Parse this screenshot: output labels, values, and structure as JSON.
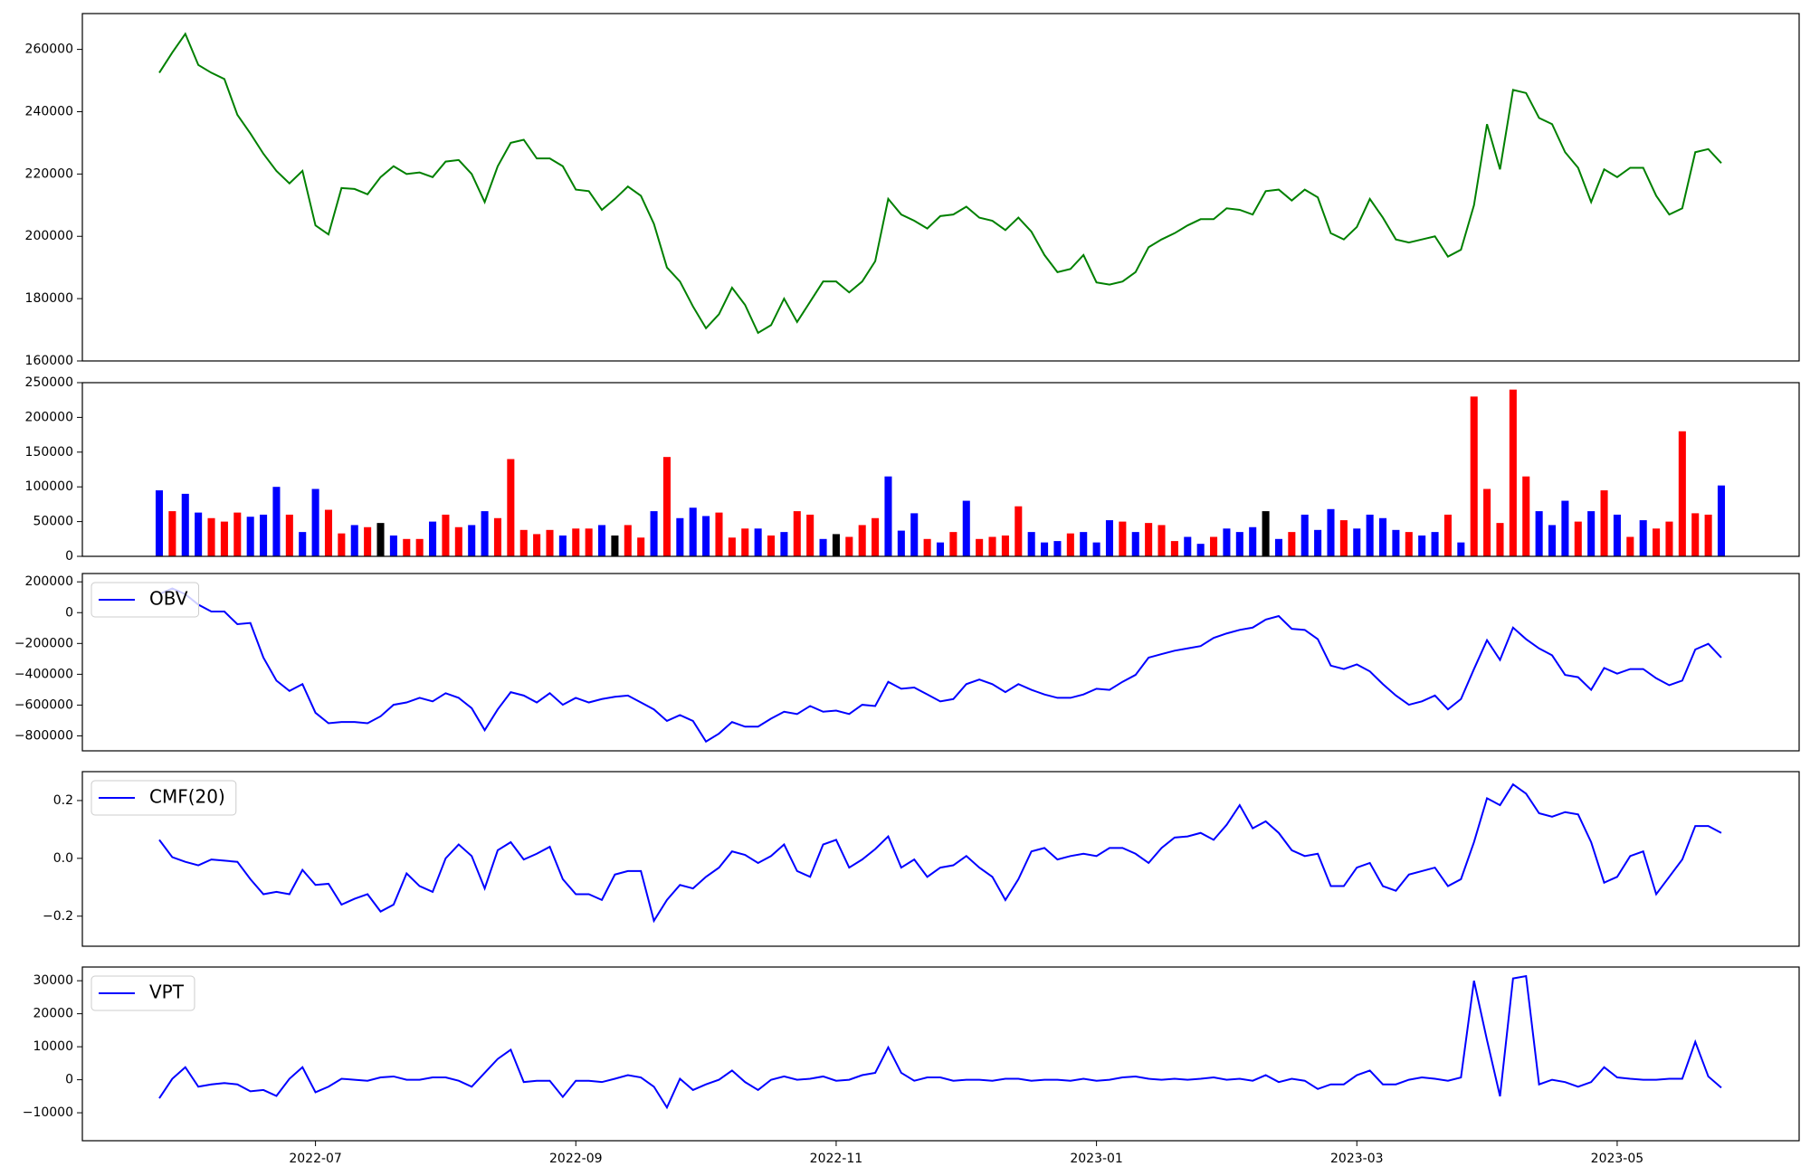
{
  "chart_data": [
    {
      "type": "line",
      "ylim": [
        160000,
        271500
      ],
      "yticks": [
        160000,
        180000,
        200000,
        220000,
        240000,
        260000
      ],
      "series": [
        {
          "color": "green",
          "values": [
            252500,
            259000,
            265000,
            255000,
            252500,
            250500,
            239000,
            233000,
            226500,
            221000,
            217000,
            221000,
            203500,
            200600,
            215500,
            215200,
            213500,
            219000,
            222500,
            220000,
            220500,
            219000,
            224000,
            224500,
            220000,
            211000,
            222500,
            230000,
            231000,
            225000,
            225000,
            222500,
            215000,
            214500,
            208500,
            212000,
            216000,
            213000,
            204000,
            190000,
            185500,
            177500,
            170500,
            175000,
            183500,
            178000,
            169000,
            171500,
            180000,
            172500,
            179000,
            185500,
            185500,
            182000,
            185500,
            192000,
            212000,
            207000,
            205000,
            202500,
            206500,
            207000,
            209500,
            206000,
            205000,
            202000,
            206000,
            201500,
            194000,
            188500,
            189500,
            194000,
            185200,
            184500,
            185500,
            188500,
            196500,
            199000,
            201000,
            203500,
            205500,
            205500,
            209000,
            208500,
            207000,
            214500,
            215000,
            211500,
            215000,
            212500,
            201000,
            199000,
            203000,
            212000,
            206000,
            199000,
            198000,
            199000,
            200000,
            193500,
            195700,
            210000,
            236000,
            221500,
            247000,
            246000,
            238000,
            236000,
            227000,
            222000,
            211000,
            221500,
            219000,
            222000,
            222000,
            213000,
            207000,
            209000,
            227000,
            228000,
            223500
          ]
        }
      ]
    },
    {
      "type": "bar",
      "ylim": [
        0,
        250000
      ],
      "yticks": [
        0,
        50000,
        100000,
        150000,
        200000,
        250000
      ],
      "values": [
        95000,
        65000,
        90000,
        63000,
        55000,
        50000,
        63000,
        57000,
        60000,
        100000,
        60000,
        35000,
        97000,
        67000,
        33000,
        45000,
        42000,
        48000,
        30000,
        25000,
        25000,
        50000,
        60000,
        42000,
        45000,
        65000,
        55000,
        140000,
        38000,
        32000,
        38000,
        30000,
        40000,
        40000,
        45000,
        30000,
        45000,
        27000,
        65000,
        143000,
        55000,
        70000,
        58000,
        63000,
        27000,
        40000,
        40000,
        30000,
        35000,
        65000,
        60000,
        25000,
        32000,
        28000,
        45000,
        55000,
        115000,
        37000,
        62000,
        25000,
        20000,
        35000,
        80000,
        25000,
        28000,
        30000,
        72000,
        35000,
        20000,
        22000,
        33000,
        35000,
        20000,
        52000,
        50000,
        35000,
        48000,
        45000,
        22000,
        28000,
        18000,
        28000,
        40000,
        35000,
        42000,
        65000,
        25000,
        35000,
        60000,
        38000,
        68000,
        52000,
        40000,
        60000,
        55000,
        38000,
        35000,
        30000,
        35000,
        60000,
        20000,
        230000,
        97000,
        48000,
        240000,
        115000,
        65000,
        45000,
        80000,
        50000,
        65000,
        95000,
        60000,
        28000,
        52000,
        40000,
        50000,
        180000,
        62000,
        60000,
        102000
      ],
      "colors": [
        "blue",
        "red",
        "blue",
        "blue",
        "red",
        "red",
        "red",
        "blue",
        "blue",
        "blue",
        "red",
        "blue",
        "blue",
        "red",
        "red",
        "blue",
        "red",
        "black",
        "blue",
        "red",
        "red",
        "blue",
        "red",
        "red",
        "blue",
        "blue",
        "red",
        "red",
        "red",
        "red",
        "red",
        "blue",
        "red",
        "red",
        "blue",
        "black",
        "red",
        "red",
        "blue",
        "red",
        "blue",
        "blue",
        "blue",
        "red",
        "red",
        "red",
        "blue",
        "red",
        "blue",
        "red",
        "red",
        "blue",
        "black",
        "red",
        "red",
        "red",
        "blue",
        "blue",
        "blue",
        "red",
        "blue",
        "red",
        "blue",
        "red",
        "red",
        "red",
        "red",
        "blue",
        "blue",
        "blue",
        "red",
        "blue",
        "blue",
        "blue",
        "red",
        "blue",
        "red",
        "red",
        "red",
        "blue",
        "blue",
        "red",
        "blue",
        "blue",
        "blue",
        "black",
        "blue",
        "red",
        "blue",
        "blue",
        "blue",
        "red",
        "blue",
        "blue",
        "blue",
        "blue",
        "red",
        "blue",
        "blue",
        "red",
        "blue",
        "red",
        "red",
        "red",
        "red",
        "red",
        "blue",
        "blue",
        "blue",
        "red",
        "blue",
        "red",
        "blue",
        "red",
        "blue",
        "red",
        "red",
        "red",
        "red",
        "red",
        "blue"
      ]
    },
    {
      "type": "line",
      "legend": "upper left",
      "ylim": [
        -897000,
        254000
      ],
      "yticks": [
        {
          "value": -800000,
          "label": "−800000"
        },
        {
          "value": -600000,
          "label": "−600000"
        },
        {
          "value": -400000,
          "label": "−400000"
        },
        {
          "value": -200000,
          "label": "−200000"
        },
        0,
        200000
      ],
      "series": [
        {
          "name": "OBV",
          "color": "blue",
          "values": [
            120000,
            157000,
            120000,
            52000,
            7000,
            7000,
            -75000,
            -67000,
            -292000,
            -441000,
            -508000,
            -464000,
            -650000,
            -718000,
            -710000,
            -710000,
            -718000,
            -673000,
            -598000,
            -583000,
            -553000,
            -576000,
            -523000,
            -553000,
            -620000,
            -763000,
            -628000,
            -516000,
            -538000,
            -583000,
            -523000,
            -598000,
            -553000,
            -583000,
            -561000,
            -546000,
            -538000,
            -583000,
            -628000,
            -703000,
            -665000,
            -703000,
            -837000,
            -785000,
            -710000,
            -740000,
            -740000,
            -688000,
            -643000,
            -658000,
            -606000,
            -643000,
            -636000,
            -658000,
            -598000,
            -606000,
            -449000,
            -494000,
            -486000,
            -531000,
            -576000,
            -561000,
            -464000,
            -434000,
            -464000,
            -516000,
            -464000,
            -501000,
            -531000,
            -553000,
            -553000,
            -531000,
            -494000,
            -501000,
            -449000,
            -404000,
            -292000,
            -269000,
            -247000,
            -232000,
            -217000,
            -164000,
            -135000,
            -112000,
            -97000,
            -45000,
            -22000,
            -105000,
            -112000,
            -172000,
            -344000,
            -366000,
            -336000,
            -381000,
            -464000,
            -538000,
            -598000,
            -576000,
            -538000,
            -628000,
            -561000,
            -366000,
            -179000,
            -307000,
            -97000,
            -172000,
            -232000,
            -277000,
            -404000,
            -419000,
            -501000,
            -359000,
            -396000,
            -366000,
            -366000,
            -426000,
            -471000,
            -441000,
            -239000,
            -202000,
            -292000
          ]
        }
      ]
    },
    {
      "type": "line",
      "legend": "upper left",
      "ylim": [
        -0.304,
        0.3
      ],
      "yticks": [
        {
          "value": -0.2,
          "label": "−0.2"
        },
        {
          "value": 0,
          "label": "0.0"
        },
        0.2
      ],
      "series": [
        {
          "name": "CMF(20)",
          "color": "blue",
          "values": [
            0.064,
            0.004,
            -0.012,
            -0.024,
            -0.004,
            -0.008,
            -0.012,
            -0.072,
            -0.124,
            -0.116,
            -0.124,
            -0.04,
            -0.092,
            -0.088,
            -0.16,
            -0.14,
            -0.124,
            -0.184,
            -0.16,
            -0.052,
            -0.096,
            -0.116,
            0.0,
            0.048,
            0.008,
            -0.104,
            0.028,
            0.056,
            -0.004,
            0.016,
            0.04,
            -0.072,
            -0.124,
            -0.124,
            -0.144,
            -0.056,
            -0.044,
            -0.044,
            -0.216,
            -0.144,
            -0.092,
            -0.104,
            -0.064,
            -0.032,
            0.024,
            0.012,
            -0.016,
            0.008,
            0.048,
            -0.044,
            -0.064,
            0.048,
            0.064,
            -0.032,
            -0.004,
            0.032,
            0.076,
            -0.032,
            -0.004,
            -0.064,
            -0.032,
            -0.024,
            0.008,
            -0.032,
            -0.064,
            -0.144,
            -0.072,
            0.024,
            0.036,
            -0.004,
            0.008,
            0.016,
            0.008,
            0.036,
            0.036,
            0.016,
            -0.016,
            0.036,
            0.072,
            0.076,
            0.088,
            0.064,
            0.116,
            0.184,
            0.104,
            0.128,
            0.088,
            0.028,
            0.008,
            0.016,
            -0.096,
            -0.096,
            -0.032,
            -0.016,
            -0.096,
            -0.112,
            -0.056,
            -0.044,
            -0.032,
            -0.096,
            -0.072,
            0.056,
            0.208,
            0.184,
            0.256,
            0.224,
            0.156,
            0.144,
            0.16,
            0.152,
            0.056,
            -0.084,
            -0.064,
            0.008,
            0.024,
            -0.124,
            -0.064,
            -0.004,
            0.112,
            0.112,
            0.088
          ]
        }
      ]
    },
    {
      "type": "line",
      "legend": "upper left",
      "ylim": [
        -18470,
        34150
      ],
      "yticks": [
        {
          "value": -10000,
          "label": "−10000"
        },
        0,
        10000,
        20000,
        30000
      ],
      "categories": [
        null,
        null,
        null,
        null,
        null,
        null,
        null,
        null,
        null,
        null,
        null,
        null,
        "2022-07",
        null,
        null,
        null,
        null,
        null,
        null,
        null,
        null,
        null,
        null,
        null,
        null,
        null,
        null,
        null,
        null,
        null,
        null,
        null,
        "2022-09",
        null,
        null,
        null,
        null,
        null,
        null,
        null,
        null,
        null,
        null,
        null,
        null,
        null,
        null,
        null,
        null,
        null,
        null,
        null,
        "2022-11",
        null,
        null,
        null,
        null,
        null,
        null,
        null,
        null,
        null,
        null,
        null,
        null,
        null,
        null,
        null,
        null,
        null,
        null,
        null,
        "2023-01",
        null,
        null,
        null,
        null,
        null,
        null,
        null,
        null,
        null,
        null,
        null,
        null,
        null,
        null,
        null,
        null,
        null,
        null,
        null,
        "2023-03",
        null,
        null,
        null,
        null,
        null,
        null,
        null,
        null,
        null,
        null,
        null,
        null,
        null,
        null,
        null,
        null,
        null,
        null,
        null,
        "2023-05",
        null,
        null,
        null,
        null,
        null,
        null,
        null,
        null
      ],
      "series": [
        {
          "name": "VPT",
          "color": "blue",
          "values": [
            -5600,
            300,
            3800,
            -2100,
            -1400,
            -1000,
            -1400,
            -3500,
            -3100,
            -4900,
            300,
            3800,
            -3800,
            -2100,
            300,
            0,
            -300,
            700,
            1000,
            0,
            0,
            700,
            700,
            -300,
            -2100,
            2100,
            6300,
            9100,
            -700,
            -300,
            -300,
            -5200,
            -300,
            -300,
            -700,
            300,
            1400,
            700,
            -2100,
            -8400,
            300,
            -3100,
            -1400,
            0,
            2800,
            -700,
            -3100,
            0,
            1000,
            0,
            300,
            1000,
            -300,
            0,
            1400,
            2100,
            9800,
            2100,
            -300,
            700,
            700,
            -300,
            0,
            0,
            -300,
            300,
            300,
            -300,
            0,
            0,
            -300,
            300,
            -300,
            0,
            700,
            1000,
            300,
            0,
            300,
            0,
            300,
            700,
            0,
            300,
            -300,
            1400,
            -700,
            300,
            -300,
            -2800,
            -1400,
            -1400,
            1400,
            2800,
            -1400,
            -1400,
            0,
            700,
            300,
            -300,
            700,
            30000,
            12000,
            -5000,
            30700,
            31400,
            -1400,
            0,
            -700,
            -2100,
            -700,
            3800,
            700,
            300,
            0,
            0,
            300,
            300,
            11500,
            1000,
            -2400
          ]
        }
      ]
    }
  ]
}
